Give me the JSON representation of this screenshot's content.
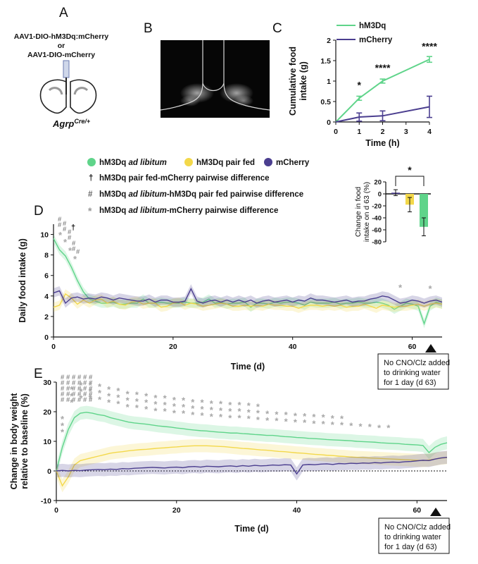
{
  "panel_letters": {
    "a": "A",
    "b": "B",
    "c": "C",
    "d": "D",
    "e": "E"
  },
  "panel_a": {
    "line1": "AAV1-DIO-hM3Dq:mCherry",
    "line2": "or",
    "line3": "AAV1-DIO-mCherry",
    "genotype": "Agrp",
    "genotype_sup": "Cre/+"
  },
  "legend": {
    "hm3dq_al_prefix": "hM3Dq ",
    "hm3dq_al_italic": "ad libitum",
    "hm3dq_pf": "hM3Dq pair fed",
    "mcherry": "mCherry",
    "dagger_symbol": "†",
    "dagger_text": "hM3Dq pair fed-mCherry pairwise difference",
    "hash_symbol": "#",
    "hash_prefix": "hM3Dq ",
    "hash_italic": "ad libitum",
    "hash_suffix": "-hM3Dq pair fed pairwise difference",
    "star_symbol": "*",
    "star_prefix": "hM3Dq ",
    "star_italic": "ad libitum",
    "star_suffix": "-mCherry pairwise difference"
  },
  "colors": {
    "green": "#5fd48a",
    "yellow": "#f3d84a",
    "purple": "#4b3e8f",
    "gray_sig": "#a8a8a8"
  },
  "notes": {
    "d_box": [
      "No CNO/Clz added",
      "to drinking water",
      "for 1 day (d 63)"
    ],
    "e_box": [
      "No CNO/Clz added",
      "to drinking water",
      "for 1 day (d 63)"
    ]
  },
  "chart_data": [
    {
      "id": "C",
      "type": "line",
      "xlabel": "Time (h)",
      "ylabel": "Cumulative food intake (g)",
      "ylabel_lines": [
        "Cumulative food",
        "intake (g)"
      ],
      "x": [
        0,
        1,
        2,
        4
      ],
      "xticks": [
        "0",
        "1",
        "2",
        "3",
        "4"
      ],
      "yticks": [
        "0",
        "0.5",
        "1",
        "1.5",
        "2"
      ],
      "ylim": [
        0,
        2
      ],
      "xlim": [
        0,
        4
      ],
      "series": [
        {
          "name": "hM3Dq",
          "color": "green",
          "values": [
            0,
            0.58,
            1.0,
            1.53
          ],
          "err": [
            0,
            0.05,
            0.05,
            0.07
          ]
        },
        {
          "name": "mCherry",
          "color": "purple",
          "values": [
            0,
            0.12,
            0.15,
            0.37
          ],
          "err": [
            0,
            0.1,
            0.12,
            0.26
          ]
        }
      ],
      "significance": [
        {
          "x": 1,
          "label": "*"
        },
        {
          "x": 2,
          "label": "****"
        },
        {
          "x": 4,
          "label": "****"
        }
      ]
    },
    {
      "id": "D_inset",
      "type": "bar",
      "ylabel": "Change in food intake on d 63 (%)",
      "ylabel_lines": [
        "Change in food",
        "intake on d 63 (%)"
      ],
      "yticks": [
        "20",
        "0",
        "-20",
        "-40",
        "-60",
        "-80"
      ],
      "ylim": [
        -80,
        20
      ],
      "categories": [
        "mCherry",
        "hM3Dq pair fed",
        "hM3Dq ad libitum"
      ],
      "values": [
        2,
        -18,
        -55
      ],
      "err": [
        5,
        12,
        15
      ],
      "colors": [
        "purple",
        "yellow",
        "green"
      ],
      "significance": "*"
    },
    {
      "id": "D",
      "type": "line",
      "xlabel": "Time (d)",
      "ylabel": "Daily food intake (g)",
      "xticks": [
        "0",
        "20",
        "40",
        "60"
      ],
      "yticks": [
        "0",
        "2",
        "4",
        "6",
        "8",
        "10"
      ],
      "xlim": [
        0,
        65
      ],
      "ylim": [
        0,
        11
      ],
      "series": [
        {
          "name": "hM3Dq ad libitum",
          "color": "green",
          "values": [
            9.6,
            8.5,
            7.9,
            6.8,
            5.5,
            4.4,
            3.7,
            3.5,
            3.3,
            3.3,
            3.4,
            3.2,
            3.2,
            3.3,
            3.3,
            3.7,
            3.3,
            3.3,
            3.4,
            3.3,
            3.3,
            3.3,
            3.4,
            3.3,
            3.3,
            3.4,
            3.7,
            3.3,
            3.4,
            3.2,
            3.3,
            3.3,
            3.4,
            2.9,
            3.3,
            3.3,
            3.2,
            3.4,
            3.3,
            3.4,
            3.4,
            3.3,
            3.1,
            3.4,
            3.3,
            3.3,
            3.3,
            3.4,
            3.2,
            3.3,
            3.3,
            3.4,
            3.3,
            3.3,
            3.4,
            3.3,
            3.1,
            2.7,
            3.0,
            3.3,
            3.2,
            3.0,
            1.3,
            3.0,
            3.4,
            3.2
          ]
        },
        {
          "name": "hM3Dq pair fed",
          "color": "yellow",
          "values": [
            2.9,
            3.1,
            4.2,
            3.8,
            3.2,
            3.6,
            3.3,
            3.6,
            3.7,
            3.3,
            3.5,
            3.2,
            3.1,
            3.4,
            3.5,
            3.2,
            3.3,
            3.3,
            2.9,
            3.0,
            3.3,
            3.4,
            3.1,
            3.3,
            3.2,
            3.0,
            3.1,
            3.2,
            3.3,
            3.2,
            3.0,
            3.0,
            3.1,
            3.0,
            3.1,
            3.0,
            3.2,
            3.1,
            3.1,
            3.0,
            3.0,
            2.8,
            3.0,
            3.1,
            3.1,
            3.0,
            3.1,
            3.0,
            3.1,
            2.9,
            3.0,
            3.0,
            3.2,
            3.0,
            2.8,
            3.1,
            3.0,
            2.9,
            3.0,
            3.0,
            3.1,
            3.2,
            3.0,
            3.2,
            3.3,
            3.2
          ]
        },
        {
          "name": "mCherry",
          "color": "purple",
          "values": [
            4.3,
            4.5,
            3.3,
            3.8,
            3.9,
            3.7,
            3.8,
            3.7,
            3.9,
            3.8,
            3.6,
            3.8,
            3.7,
            3.6,
            3.5,
            3.5,
            3.7,
            3.4,
            3.6,
            3.6,
            3.4,
            3.4,
            3.5,
            4.7,
            3.5,
            3.3,
            3.5,
            3.6,
            3.4,
            3.6,
            3.4,
            3.6,
            3.4,
            3.6,
            3.3,
            3.5,
            3.6,
            3.4,
            3.5,
            3.6,
            3.4,
            3.6,
            3.5,
            3.8,
            3.6,
            3.6,
            3.5,
            3.4,
            3.5,
            3.6,
            3.4,
            3.5,
            3.5,
            3.7,
            3.8,
            4.0,
            3.9,
            3.6,
            3.3,
            3.4,
            3.6,
            3.5,
            3.3,
            3.5,
            3.6,
            3.4
          ]
        }
      ],
      "annotations": "gray * at days 58 and 63"
    },
    {
      "id": "E",
      "type": "line",
      "xlabel": "Time (d)",
      "ylabel": "Change in body weight relative to baseline (%)",
      "ylabel_lines": [
        "Change in body weight",
        "relative to baseline (%)"
      ],
      "xticks": [
        "0",
        "20",
        "40",
        "60"
      ],
      "yticks": [
        "-10",
        "0",
        "10",
        "20",
        "30"
      ],
      "xlim": [
        0,
        65
      ],
      "ylim": [
        -10,
        30
      ],
      "series": [
        {
          "name": "hM3Dq ad libitum",
          "color": "green",
          "values": [
            0,
            8,
            14,
            18,
            19.5,
            19.8,
            19.5,
            19,
            18.7,
            18,
            17.5,
            17,
            16.5,
            16.2,
            16,
            15.8,
            15.5,
            15.2,
            15,
            14.8,
            14.5,
            14.3,
            14,
            13.8,
            13.6,
            13.5,
            13.3,
            13.1,
            13,
            12.8,
            12.8,
            12.6,
            12.5,
            12.3,
            12.2,
            12,
            12,
            11.8,
            11.6,
            11.5,
            11.3,
            11.2,
            11,
            10.9,
            10.8,
            10.6,
            10.5,
            10.4,
            10.3,
            10.2,
            10,
            9.9,
            9.8,
            9.7,
            9.5,
            9.4,
            9.3,
            9.2,
            9,
            8.9,
            8.8,
            8.6,
            6.2,
            8,
            9,
            9.5
          ]
        },
        {
          "name": "hM3Dq pair fed",
          "color": "yellow",
          "values": [
            0,
            -5,
            -2,
            2,
            3.5,
            4,
            4.5,
            5,
            5.5,
            6,
            6.3,
            6.5,
            6.8,
            7,
            7.2,
            7.3,
            7.5,
            7.7,
            7.8,
            8,
            8.1,
            8.3,
            8.4,
            8.5,
            8.5,
            8.5,
            8.4,
            8.3,
            8.2,
            8,
            7.8,
            7.6,
            7.5,
            7.3,
            7.1,
            7,
            6.8,
            6.6,
            6.5,
            6.3,
            6.1,
            6,
            5.8,
            5.6,
            5.5,
            5.3,
            5.2,
            5,
            4.9,
            4.7,
            4.6,
            4.5,
            4.4,
            4.3,
            4.2,
            4.1,
            4,
            3.9,
            3.8,
            3.7,
            3.6,
            3.5,
            3.7,
            4,
            4.3,
            4.5
          ]
        },
        {
          "name": "mCherry",
          "color": "purple",
          "values": [
            0,
            0.2,
            0,
            0.2,
            0.1,
            0.3,
            0.4,
            0.5,
            0.4,
            0.6,
            0.5,
            0.8,
            0.7,
            0.9,
            1,
            1.1,
            1.2,
            1.1,
            1,
            1.2,
            1.3,
            1.1,
            1.4,
            1.5,
            1.3,
            1.6,
            1.5,
            1.4,
            1.6,
            1.7,
            1.5,
            1.8,
            1.6,
            1.9,
            1.7,
            1.8,
            2,
            1.9,
            2.1,
            2,
            -1,
            2,
            2.2,
            2.1,
            2.3,
            2.4,
            2.2,
            2.5,
            2.4,
            2.6,
            2.5,
            2.7,
            2.6,
            2.8,
            2.7,
            2.9,
            3,
            2.9,
            3.1,
            3.2,
            3.4,
            3.6,
            3.5,
            4,
            4.4,
            4.6
          ]
        }
      ]
    }
  ]
}
